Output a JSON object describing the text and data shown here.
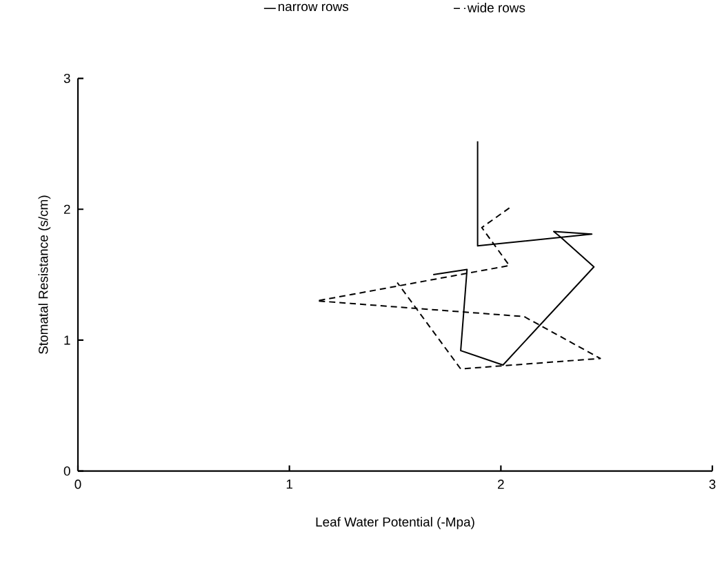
{
  "chart_data": {
    "type": "line",
    "xlabel": "Leaf Water Potential (-Mpa)",
    "ylabel": "Stomatal Resistance (s/cm)",
    "xlim": [
      0,
      3
    ],
    "ylim": [
      0,
      3
    ],
    "xticks": [
      0,
      1,
      2,
      3
    ],
    "yticks": [
      0,
      1,
      2,
      3
    ],
    "legend": "top",
    "series": [
      {
        "name": "narrow rows",
        "color": "#000000",
        "line_style": "solid",
        "x": [
          1.68,
          1.84,
          1.81,
          2.01,
          2.44,
          2.28,
          2.25,
          2.43,
          1.89,
          1.89
        ],
        "values": [
          1.5,
          1.54,
          0.92,
          0.81,
          1.56,
          1.79,
          1.83,
          1.81,
          1.72,
          2.52
        ]
      },
      {
        "name": "wide rows",
        "color": "#000000",
        "line_style": "dashed",
        "x": [
          2.04,
          1.91,
          2.04,
          1.13,
          2.11,
          2.47,
          1.81,
          1.51
        ],
        "values": [
          2.01,
          1.86,
          1.57,
          1.3,
          1.18,
          0.86,
          0.78,
          1.44
        ]
      }
    ]
  }
}
